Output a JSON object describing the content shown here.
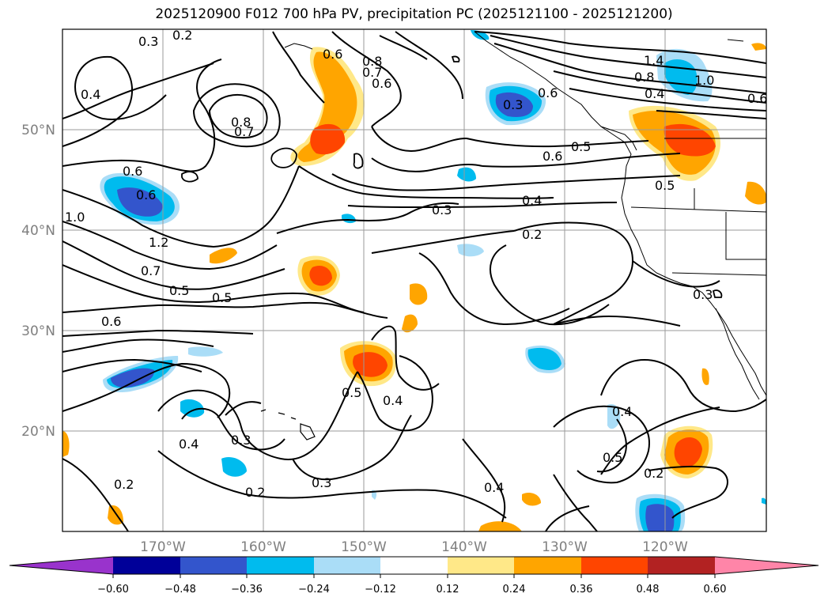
{
  "title": "2025120900 F012 700 hPa PV, precipitation PC (2025121100 - 2025121200)",
  "latitude_labels": [
    "50°N",
    "40°N",
    "30°N",
    "20°N"
  ],
  "longitude_labels": [
    "170°W",
    "160°W",
    "150°W",
    "140°W",
    "130°W",
    "120°W"
  ],
  "colorbar": {
    "tick_labels": [
      "−0.60",
      "−0.48",
      "−0.36",
      "−0.24",
      "−0.12",
      "0.12",
      "0.24",
      "0.36",
      "0.48",
      "0.60"
    ],
    "colors": [
      "#9933cc",
      "#000099",
      "#3355cc",
      "#00bbee",
      "#aaddf7",
      "#ffffff",
      "#ffe888",
      "#ffa500",
      "#ff4500",
      "#b22222",
      "#ff85a8"
    ]
  },
  "contour_labels": [
    "0.3",
    "0.2",
    "0.6",
    "0.8",
    "0.7",
    "0.6",
    "1.4",
    "0.8",
    "1.0",
    "0.4",
    "0.6",
    "0.4",
    "0.8",
    "0.7",
    "0.3",
    "0.6",
    "0.6",
    "0.6",
    "1.0",
    "1.2",
    "0.7",
    "0.5",
    "0.5",
    "0.6",
    "0.5",
    "0.6",
    "0.5",
    "0.3",
    "0.4",
    "0.2",
    "0.3",
    "0.5",
    "0.4",
    "0.4",
    "0.3",
    "0.3",
    "0.2",
    "0.2",
    "0.4",
    "0.4",
    "0.5",
    "0.2"
  ]
}
